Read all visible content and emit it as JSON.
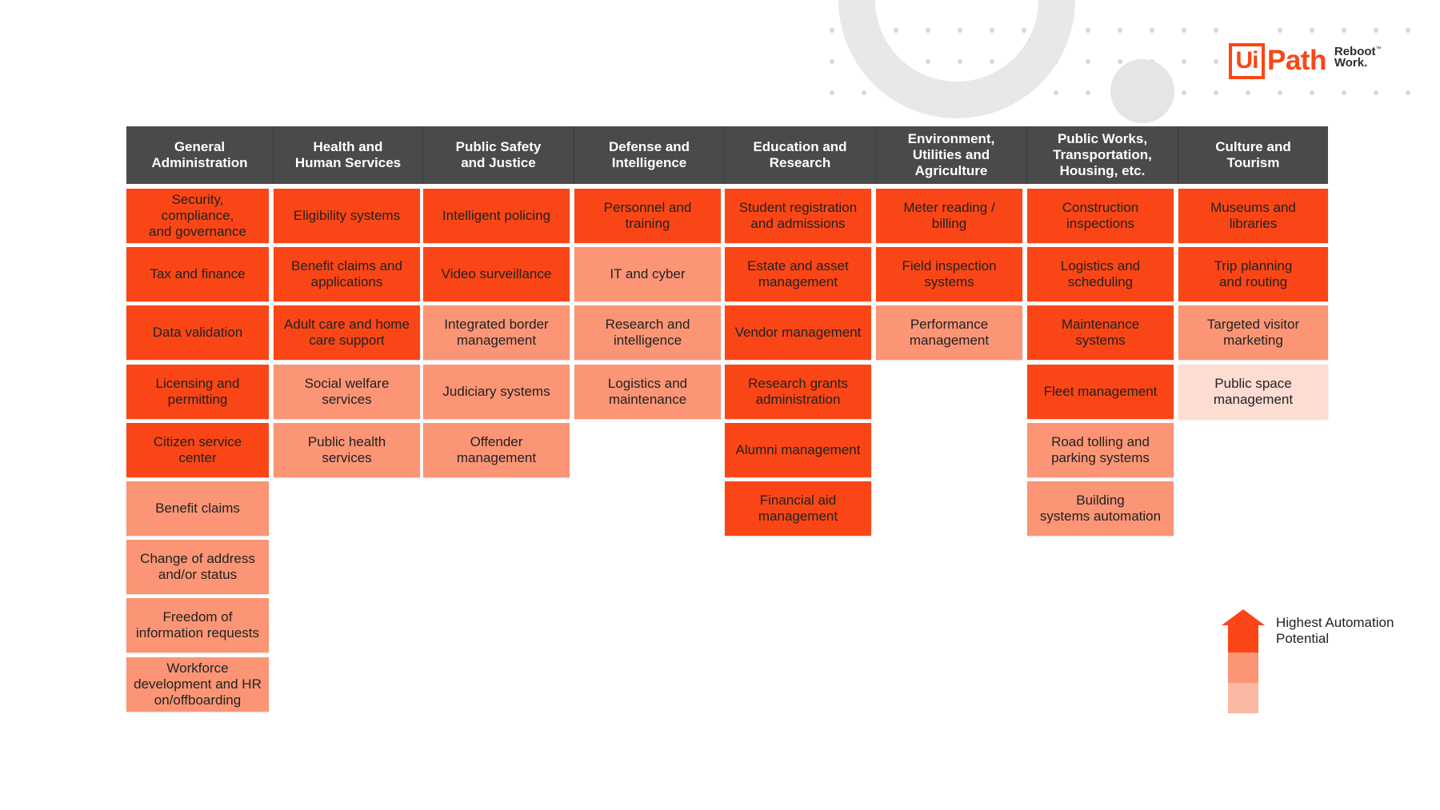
{
  "brand": {
    "logo_mark": "Ui",
    "logo_word": "Path",
    "tagline_line1": "Reboot",
    "tagline_line2": "Work.",
    "trademark": "™",
    "color": "#fa4616"
  },
  "levels": {
    "high": "#fa4616",
    "medium": "#fb9575",
    "low": "#fddcd2"
  },
  "columns": [
    {
      "header": "General\nAdministration",
      "items": [
        {
          "label": "Security,\ncompliance,\nand governance",
          "level": "high"
        },
        {
          "label": "Tax and finance",
          "level": "high"
        },
        {
          "label": "Data validation",
          "level": "high"
        },
        {
          "label": "Licensing and\npermitting",
          "level": "high"
        },
        {
          "label": "Citizen service\ncenter",
          "level": "high"
        },
        {
          "label": "Benefit claims",
          "level": "medium"
        },
        {
          "label": "Change of address\nand/or status",
          "level": "medium"
        },
        {
          "label": "Freedom of\ninformation requests",
          "level": "medium"
        },
        {
          "label": "Workforce\ndevelopment and HR\non/offboarding",
          "level": "medium"
        }
      ]
    },
    {
      "header": "Health and\nHuman Services",
      "items": [
        {
          "label": "Eligibility systems",
          "level": "high"
        },
        {
          "label": "Benefit claims and\napplications",
          "level": "high"
        },
        {
          "label": "Adult care and home\ncare support",
          "level": "high"
        },
        {
          "label": "Social welfare\nservices",
          "level": "medium"
        },
        {
          "label": "Public health\nservices",
          "level": "medium"
        }
      ]
    },
    {
      "header": "Public Safety\nand Justice",
      "items": [
        {
          "label": "Intelligent policing",
          "level": "high"
        },
        {
          "label": "Video surveillance",
          "level": "high"
        },
        {
          "label": "Integrated border\nmanagement",
          "level": "medium"
        },
        {
          "label": "Judiciary systems",
          "level": "medium"
        },
        {
          "label": "Offender\nmanagement",
          "level": "medium"
        }
      ]
    },
    {
      "header": "Defense and\nIntelligence",
      "items": [
        {
          "label": "Personnel and\ntraining",
          "level": "high"
        },
        {
          "label": "IT and cyber",
          "level": "medium"
        },
        {
          "label": "Research and\nintelligence",
          "level": "medium"
        },
        {
          "label": "Logistics and\nmaintenance",
          "level": "medium"
        }
      ]
    },
    {
      "header": "Education and\nResearch",
      "items": [
        {
          "label": "Student registration\nand admissions",
          "level": "high"
        },
        {
          "label": "Estate and asset\nmanagement",
          "level": "high"
        },
        {
          "label": "Vendor management",
          "level": "high"
        },
        {
          "label": "Research grants\nadministration",
          "level": "high"
        },
        {
          "label": "Alumni management",
          "level": "high"
        },
        {
          "label": "Financial aid\nmanagement",
          "level": "high"
        }
      ]
    },
    {
      "header": "Environment,\nUtilities and\nAgriculture",
      "items": [
        {
          "label": "Meter reading /\nbilling",
          "level": "high"
        },
        {
          "label": "Field inspection\nsystems",
          "level": "high"
        },
        {
          "label": "Performance\nmanagement",
          "level": "medium"
        }
      ]
    },
    {
      "header": "Public Works,\nTransportation,\nHousing, etc.",
      "items": [
        {
          "label": "Construction\ninspections",
          "level": "high"
        },
        {
          "label": "Logistics and\nscheduling",
          "level": "high"
        },
        {
          "label": "Maintenance\nsystems",
          "level": "high"
        },
        {
          "label": "Fleet management",
          "level": "high"
        },
        {
          "label": "Road tolling and\nparking systems",
          "level": "medium"
        },
        {
          "label": "Building\nsystems automation",
          "level": "medium"
        }
      ]
    },
    {
      "header": "Culture and\nTourism",
      "items": [
        {
          "label": "Museums and\nlibraries",
          "level": "high"
        },
        {
          "label": "Trip planning\nand routing",
          "level": "high"
        },
        {
          "label": "Targeted visitor\nmarketing",
          "level": "medium"
        },
        {
          "label": "Public space\nmanagement",
          "level": "low"
        }
      ]
    }
  ],
  "legend": {
    "label": "Highest Automation\nPotential"
  }
}
